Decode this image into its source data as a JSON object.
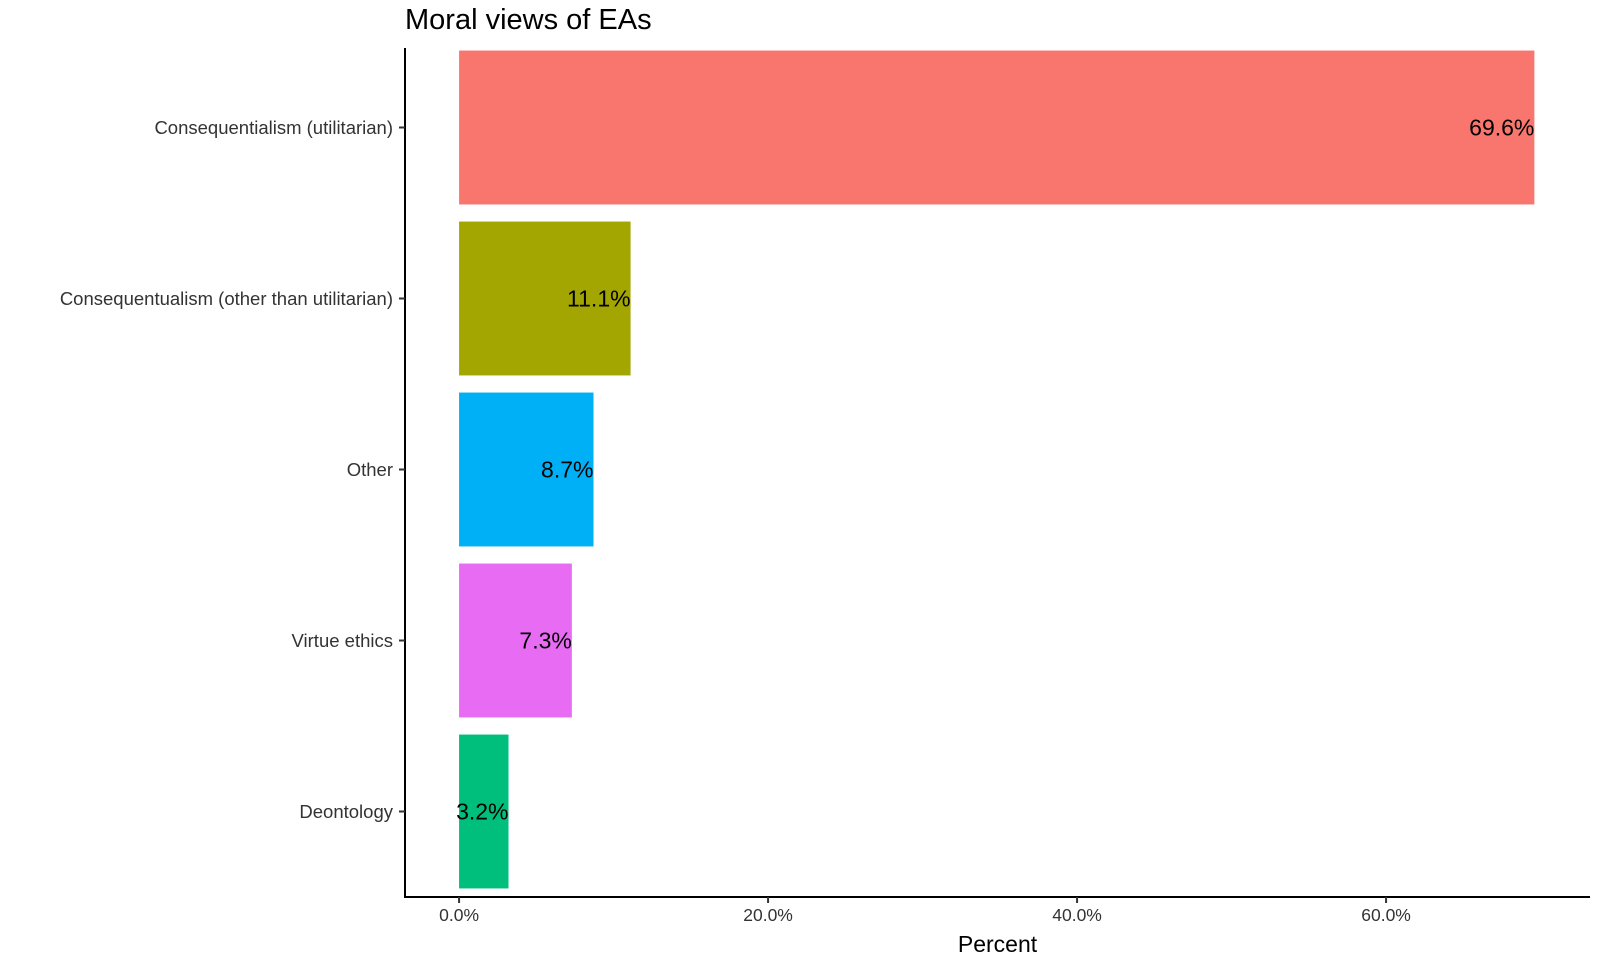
{
  "chart_data": {
    "type": "bar",
    "orientation": "horizontal",
    "title": "Moral views of EAs",
    "xlabel": "Percent",
    "ylabel": "",
    "categories": [
      "Consequentialism (utilitarian)",
      "Consequentualism (other than utilitarian)",
      "Other",
      "Virtue ethics",
      "Deontology"
    ],
    "values": [
      69.6,
      11.1,
      8.7,
      7.3,
      3.2
    ],
    "data_labels": [
      "69.6%",
      "11.1%",
      "8.7%",
      "7.3%",
      "3.2%"
    ],
    "colors": [
      "#F8766D",
      "#A3A500",
      "#00B0F6",
      "#E76BF3",
      "#00BF7D"
    ],
    "xlim": [
      -3.5,
      73.2
    ],
    "x_ticks": [
      0,
      20,
      40,
      60
    ],
    "x_tick_labels": [
      "0.0%",
      "20.0%",
      "40.0%",
      "60.0%"
    ],
    "grid": false,
    "legend": "none"
  }
}
